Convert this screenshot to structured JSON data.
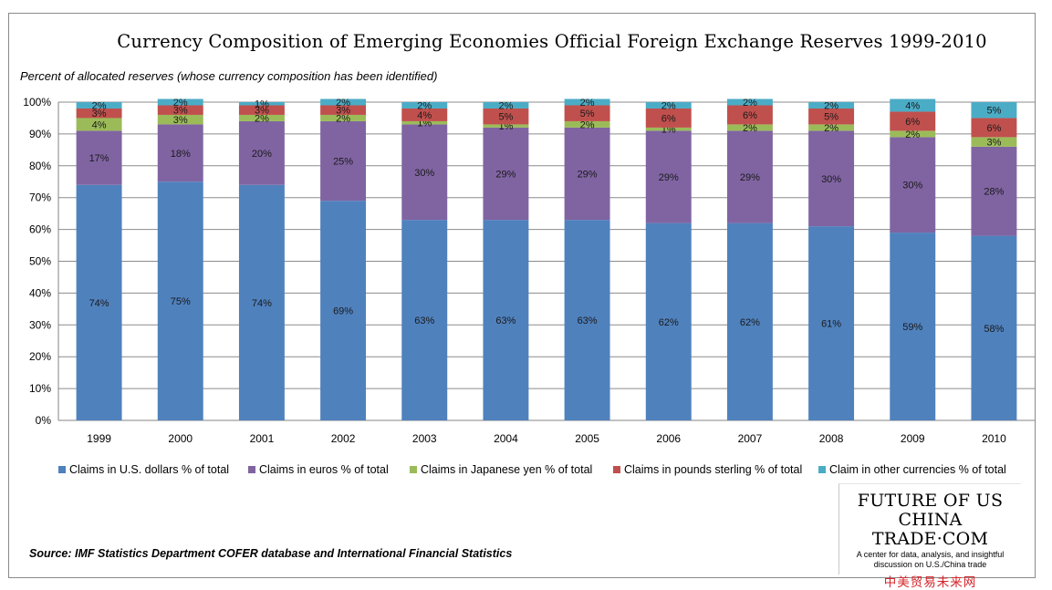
{
  "title": "Currency Composition of Emerging Economies Official Foreign Exchange Reserves 1999-2010",
  "subtitle": "Percent of allocated reserves (whose currency composition has been identified)",
  "source": "Source: IMF Statistics Department COFER database and International Financial Statistics",
  "logo": {
    "line1": "FUTURE OF US",
    "line2": "CHINA TRADE·COM",
    "tagline1": "A center for data, analysis, and insightful",
    "tagline2": "discussion on U.S./China trade",
    "chinese": "中美贸易未来网"
  },
  "chart_data": {
    "type": "bar",
    "stacked": true,
    "categories": [
      "1999",
      "2000",
      "2001",
      "2002",
      "2003",
      "2004",
      "2005",
      "2006",
      "2007",
      "2008",
      "2009",
      "2010"
    ],
    "ylim": [
      0,
      100
    ],
    "yticks": [
      "0%",
      "10%",
      "20%",
      "30%",
      "40%",
      "50%",
      "60%",
      "70%",
      "80%",
      "90%",
      "100%"
    ],
    "grid": true,
    "legend_position": "bottom",
    "series": [
      {
        "name": "Claims in U.S. dollars % of total",
        "color": "#4f81bd",
        "values": [
          74,
          75,
          74,
          69,
          63,
          63,
          63,
          62,
          62,
          61,
          59,
          58
        ],
        "labels": [
          "74%",
          "75%",
          "74%",
          "69%",
          "63%",
          "63%",
          "63%",
          "62%",
          "62%",
          "61%",
          "59%",
          "58%"
        ]
      },
      {
        "name": "Claims in euros % of total",
        "color": "#8064a2",
        "values": [
          17,
          18,
          20,
          25,
          30,
          29,
          29,
          29,
          29,
          30,
          30,
          28
        ],
        "labels": [
          "17%",
          "18%",
          "20%",
          "25%",
          "30%",
          "29%",
          "29%",
          "29%",
          "29%",
          "30%",
          "30%",
          "28%"
        ]
      },
      {
        "name": "Claims in Japanese yen % of total",
        "color": "#9bbb59",
        "values": [
          4,
          3,
          2,
          2,
          1,
          1,
          2,
          1,
          2,
          2,
          2,
          3
        ],
        "labels": [
          "4%",
          "3%",
          "2%",
          "2%",
          "1%",
          "1%",
          "2%",
          "1%",
          "2%",
          "2%",
          "2%",
          "3%"
        ]
      },
      {
        "name": "Claims in pounds  sterling % of total",
        "color": "#c0504d",
        "values": [
          3,
          3,
          3,
          3,
          4,
          5,
          5,
          6,
          6,
          5,
          6,
          6
        ],
        "labels": [
          "3%",
          "3%",
          "3%",
          "3%",
          "4%",
          "5%",
          "5%",
          "6%",
          "6%",
          "5%",
          "6%",
          "6%"
        ]
      },
      {
        "name": "Claim in other currencies % of total",
        "color": "#4bacc6",
        "values": [
          2,
          2,
          1,
          2,
          2,
          2,
          2,
          2,
          2,
          2,
          4,
          5
        ],
        "labels": [
          "2%",
          "2%",
          "1%",
          "2%",
          "2%",
          "2%",
          "2%",
          "2%",
          "2%",
          "2%",
          "4%",
          "5%"
        ]
      }
    ]
  }
}
